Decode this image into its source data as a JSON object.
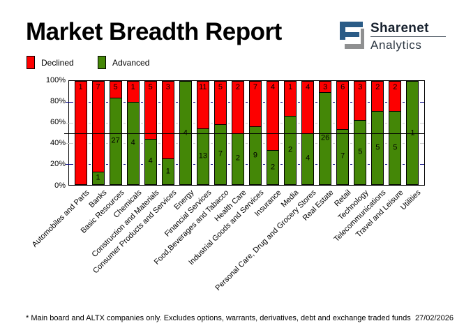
{
  "header": {
    "title": "Market Breadth Report",
    "logo": {
      "icon": "sharenet-s-mark",
      "line1": "Sharenet",
      "line2": "Analytics",
      "blue": "#2b5c87",
      "gray": "#8f9091"
    }
  },
  "legend": {
    "declined_label": "Declined",
    "advanced_label": "Advanced"
  },
  "chart_data": {
    "type": "bar",
    "stacked": true,
    "normalized": "percent-of-total",
    "title": "Market Breadth Report",
    "categories": [
      "Automobiles and Parts",
      "Banks",
      "Basic Resources",
      "Chemicals",
      "Construction and Materials",
      "Consumer Products and Services",
      "Energy",
      "Financial Services",
      "Food,Beverages and Tabacco",
      "Health Care",
      "Industrial Goods and Services",
      "Insurance",
      "Media",
      "Personal Care, Drug and Grocery Stores",
      "Real Estate",
      "Retail",
      "Technology",
      "Telecommunications",
      "Travel and Leisure",
      "Utilities"
    ],
    "series": [
      {
        "name": "Declined",
        "color": "#fd0000",
        "values": [
          1,
          7,
          5,
          1,
          5,
          3,
          0,
          11,
          5,
          2,
          7,
          4,
          1,
          4,
          3,
          6,
          3,
          2,
          2,
          0
        ]
      },
      {
        "name": "Advanced",
        "color": "#448707",
        "values": [
          0,
          1,
          27,
          4,
          4,
          1,
          4,
          13,
          7,
          2,
          9,
          2,
          2,
          4,
          26,
          7,
          5,
          5,
          5,
          1
        ]
      }
    ],
    "yticks": [
      "0%",
      "20%",
      "40%",
      "60%",
      "80%",
      "100%"
    ],
    "ylim": [
      0,
      100
    ],
    "reference_line_percent": 50,
    "gridline_colors": {
      "navy": "#000080",
      "silver": "#c6c6c6",
      "reference": "#000000"
    },
    "legend_position": "top-left"
  },
  "footer": {
    "note": "* Main board and ALTX companies only. Excludes options, warrants, derivatives, debt and exchange traded funds",
    "date": "27/02/2026"
  }
}
